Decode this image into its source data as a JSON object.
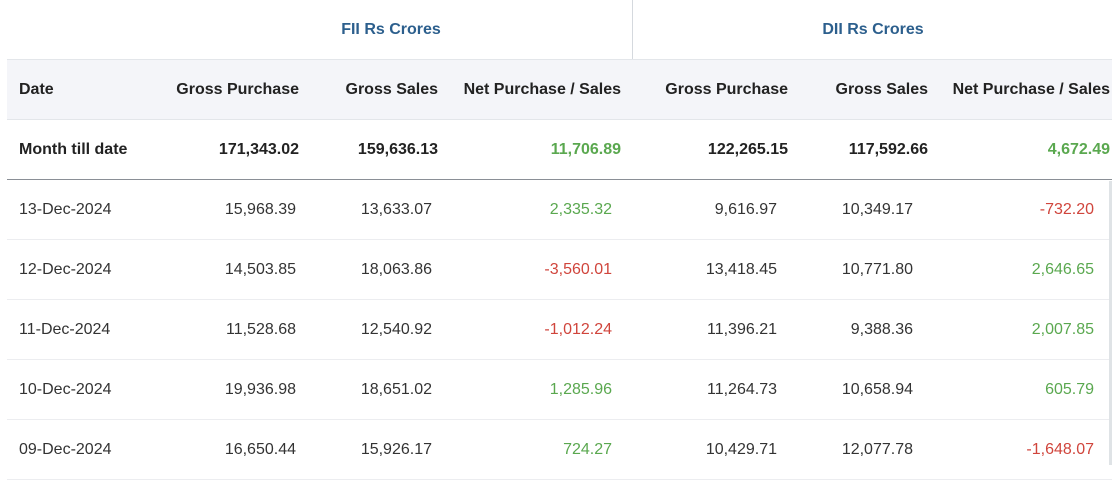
{
  "groups": {
    "fii": "FII Rs Crores",
    "dii": "DII Rs Crores"
  },
  "columns": {
    "date": "Date",
    "fii_gross_purchase": "Gross Purchase",
    "fii_gross_sales": "Gross Sales",
    "fii_net": "Net Purchase / Sales",
    "dii_gross_purchase": "Gross Purchase",
    "dii_gross_sales": "Gross Sales",
    "dii_net": "Net Purchase / Sales"
  },
  "summary": {
    "label": "Month till date",
    "fii_gross_purchase": "171,343.02",
    "fii_gross_sales": "159,636.13",
    "fii_net": "11,706.89",
    "dii_gross_purchase": "122,265.15",
    "dii_gross_sales": "117,592.66",
    "dii_net": "4,672.49"
  },
  "rows": [
    {
      "date": "13-Dec-2024",
      "fii_gross_purchase": "15,968.39",
      "fii_gross_sales": "13,633.07",
      "fii_net": "2,335.32",
      "dii_gross_purchase": "9,616.97",
      "dii_gross_sales": "10,349.17",
      "dii_net": "-732.20"
    },
    {
      "date": "12-Dec-2024",
      "fii_gross_purchase": "14,503.85",
      "fii_gross_sales": "18,063.86",
      "fii_net": "-3,560.01",
      "dii_gross_purchase": "13,418.45",
      "dii_gross_sales": "10,771.80",
      "dii_net": "2,646.65"
    },
    {
      "date": "11-Dec-2024",
      "fii_gross_purchase": "11,528.68",
      "fii_gross_sales": "12,540.92",
      "fii_net": "-1,012.24",
      "dii_gross_purchase": "11,396.21",
      "dii_gross_sales": "9,388.36",
      "dii_net": "2,007.85"
    },
    {
      "date": "10-Dec-2024",
      "fii_gross_purchase": "19,936.98",
      "fii_gross_sales": "18,651.02",
      "fii_net": "1,285.96",
      "dii_gross_purchase": "11,264.73",
      "dii_gross_sales": "10,658.94",
      "dii_net": "605.79"
    },
    {
      "date": "09-Dec-2024",
      "fii_gross_purchase": "16,650.44",
      "fii_gross_sales": "15,926.17",
      "fii_net": "724.27",
      "dii_gross_purchase": "10,429.71",
      "dii_gross_sales": "12,077.78",
      "dii_net": "-1,648.07"
    }
  ],
  "colors": {
    "positive": "#5aa84f",
    "negative": "#d0453c",
    "group_header": "#2c5f8d",
    "header_bg": "#f4f5f9"
  }
}
